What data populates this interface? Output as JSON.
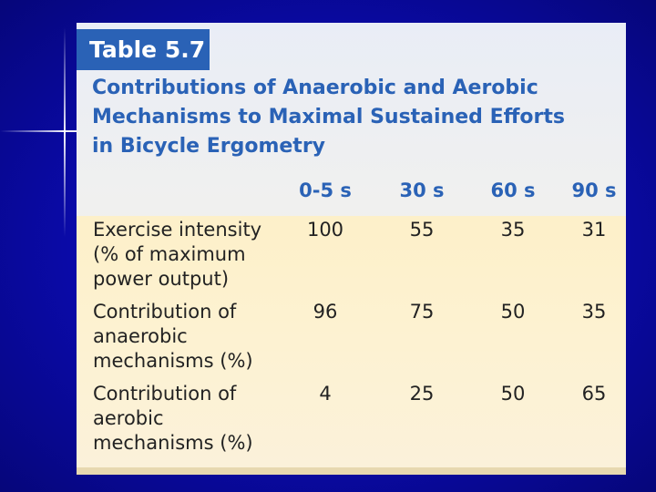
{
  "slide": {
    "background_color": "#0a0aa8",
    "accent_color": "#2a62b6"
  },
  "table": {
    "label": "Table 5.7",
    "title_lines": [
      "Contributions of Anaerobic and Aerobic",
      "Mechanisms to Maximal Sustained Efforts",
      "in Bicycle Ergometry"
    ],
    "columns": [
      "0-5 s",
      "30 s",
      "60 s",
      "90 s"
    ],
    "rows": [
      {
        "label": "Exercise intensity\n(% of maximum\npower output)",
        "values": [
          "100",
          "55",
          "35",
          "31"
        ]
      },
      {
        "label": "Contribution of\nanaerobic\nmechanisms (%)",
        "values": [
          "96",
          "75",
          "50",
          "35"
        ]
      },
      {
        "label": "Contribution of\naerobic\nmechanisms (%)",
        "values": [
          "4",
          "25",
          "50",
          "65"
        ]
      }
    ]
  }
}
